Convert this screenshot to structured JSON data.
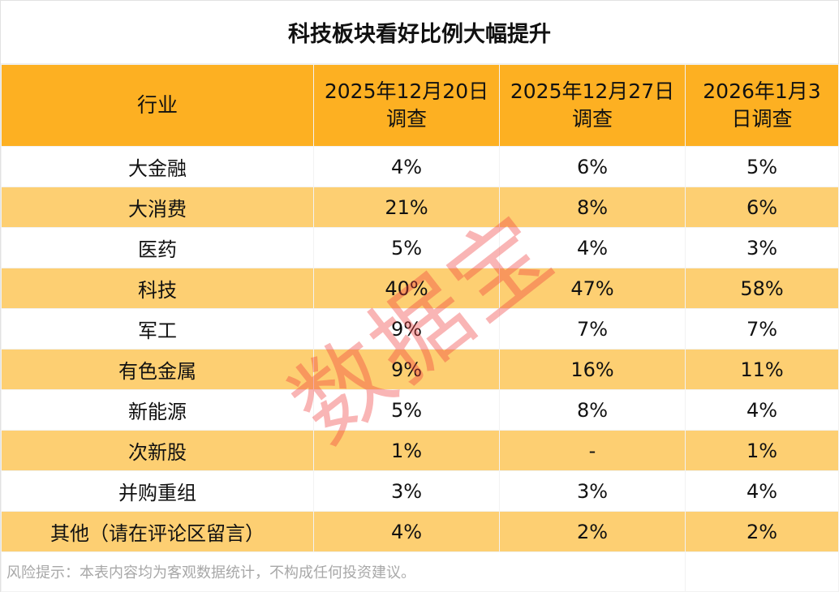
{
  "chart_data": {
    "type": "table",
    "title": "科技板块看好比例大幅提升",
    "columns": [
      "行业",
      "2025年12月20日调查",
      "2025年12月27日调查",
      "2026年1月3日调查"
    ],
    "rows": [
      [
        "大金融",
        "4%",
        "6%",
        "5%"
      ],
      [
        "大消费",
        "21%",
        "8%",
        "6%"
      ],
      [
        "医药",
        "5%",
        "4%",
        "3%"
      ],
      [
        "科技",
        "40%",
        "47%",
        "58%"
      ],
      [
        "军工",
        "9%",
        "7%",
        "7%"
      ],
      [
        "有色金属",
        "9%",
        "16%",
        "11%"
      ],
      [
        "新能源",
        "5%",
        "8%",
        "4%"
      ],
      [
        "次新股",
        "1%",
        "-",
        "1%"
      ],
      [
        "并购重组",
        "3%",
        "3%",
        "4%"
      ],
      [
        "其他（请在评论区留言）",
        "4%",
        "2%",
        "2%"
      ]
    ],
    "header_lines": [
      [
        "行业"
      ],
      [
        "2025年12月20日",
        "调查"
      ],
      [
        "2025年12月27日",
        "调查"
      ],
      [
        "2026年1月3",
        "日调查"
      ]
    ],
    "footnote": "风险提示：本表内容均为客观数据统计，不构成任何投资建议。",
    "colors": {
      "header": "#fdb022",
      "stripe": "#fdcf72",
      "watermark": "#f03c3c"
    }
  },
  "watermark": "数据宝"
}
